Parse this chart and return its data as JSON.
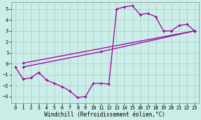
{
  "xlabel": "Windchill (Refroidissement éolien,°C)",
  "bg_color": "#cceee8",
  "grid_color": "#aacccc",
  "line_color": "#990099",
  "xlim": [
    -0.5,
    23.5
  ],
  "ylim": [
    -3.6,
    5.6
  ],
  "xticks": [
    0,
    1,
    2,
    3,
    4,
    5,
    6,
    7,
    8,
    9,
    10,
    11,
    12,
    13,
    14,
    15,
    16,
    17,
    18,
    19,
    20,
    21,
    22,
    23
  ],
  "yticks": [
    -3,
    -2,
    -1,
    0,
    1,
    2,
    3,
    4,
    5
  ],
  "line1_x": [
    0,
    1,
    2,
    3,
    4,
    5,
    6,
    7,
    8,
    9,
    10,
    11,
    12,
    13,
    14,
    15,
    16,
    17,
    18,
    19,
    20,
    21,
    22,
    23
  ],
  "line1_y": [
    -0.3,
    -1.4,
    -1.3,
    -0.8,
    -1.5,
    -1.8,
    -2.1,
    -2.5,
    -3.1,
    -3.0,
    -1.8,
    -1.8,
    -1.85,
    5.0,
    5.2,
    5.3,
    4.5,
    4.6,
    4.3,
    3.0,
    3.0,
    3.5,
    3.6,
    3.0
  ],
  "line2_x": [
    1,
    23
  ],
  "line2_y": [
    0.05,
    3.0
  ],
  "line3_x": [
    1,
    11,
    23
  ],
  "line3_y": [
    -0.3,
    1.1,
    3.0
  ]
}
